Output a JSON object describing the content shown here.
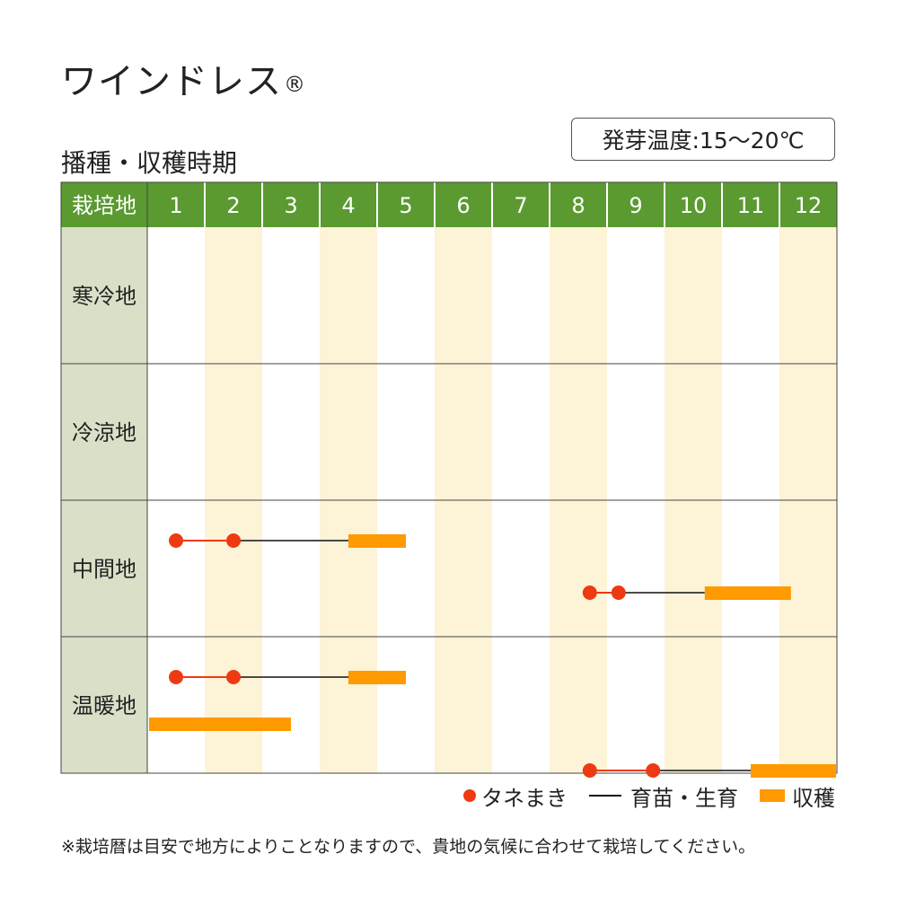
{
  "title": "ワインドレス",
  "title_mark": "®",
  "section_title": "播種・収穫時期",
  "germination_temp": "発芽温度:15〜20℃",
  "footnote": "※栽培暦は目安で地方によりことなりますので、貴地の気候に合わせて栽培してください。",
  "legend": {
    "sowing": "タネまき",
    "growing": "育苗・生育",
    "harvest": "収穫"
  },
  "colors": {
    "header_green": "#5a9a31",
    "label_column": "#d8e0c8",
    "stripe": "#fdf3d6",
    "sowing": "#ee3a12",
    "growing": "#111111",
    "harvest": "#ff9a00"
  },
  "chart_data": {
    "type": "table",
    "corner_header": "栽培地",
    "months": [
      "1",
      "2",
      "3",
      "4",
      "5",
      "6",
      "7",
      "8",
      "9",
      "10",
      "11",
      "12"
    ],
    "regions": [
      {
        "name": "寒冷地",
        "schedules": []
      },
      {
        "name": "冷涼地",
        "schedules": []
      },
      {
        "name": "中間地",
        "schedules": [
          {
            "sowing": [
              1.5,
              2.5
            ],
            "growing": [
              2.5,
              4.5
            ],
            "harvest": [
              4.5,
              5.5
            ]
          },
          {
            "sowing": [
              8.7,
              9.2
            ],
            "growing": [
              9.2,
              10.7
            ],
            "harvest": [
              10.7,
              12.2
            ]
          }
        ]
      },
      {
        "name": "温暖地",
        "schedules": [
          {
            "sowing": [
              1.5,
              2.5
            ],
            "growing": [
              2.5,
              4.5
            ],
            "harvest": [
              4.5,
              5.5
            ]
          },
          {
            "harvest": [
              1.0,
              3.5
            ]
          },
          {
            "sowing": [
              8.7,
              9.8
            ],
            "growing": [
              9.8,
              11.5
            ],
            "harvest": [
              11.5,
              13.0
            ]
          }
        ]
      }
    ]
  }
}
